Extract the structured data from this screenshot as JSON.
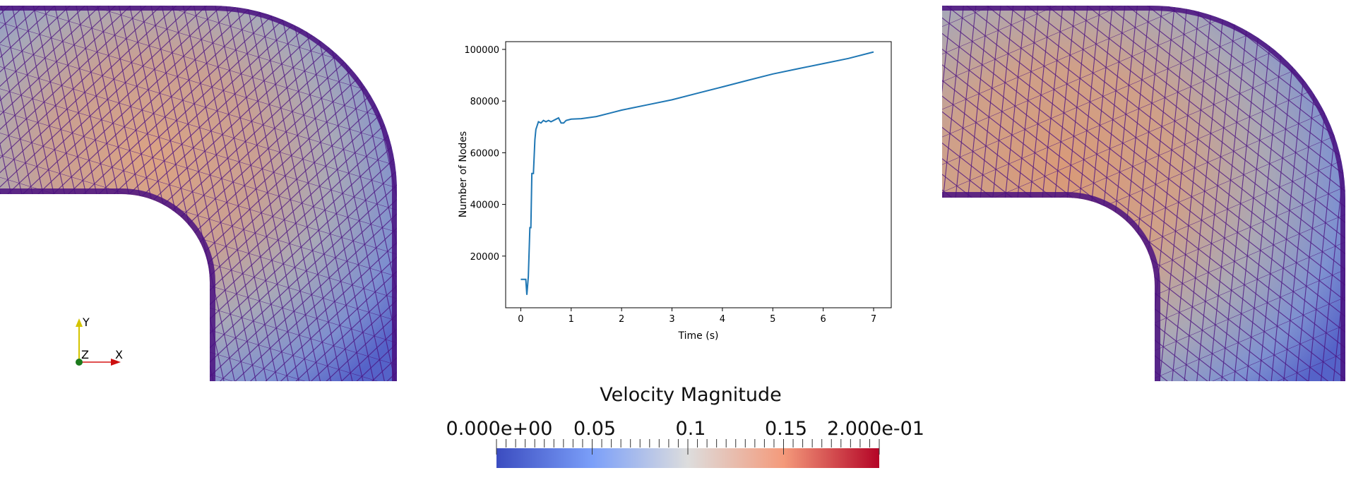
{
  "chart_data": {
    "type": "line",
    "xlabel": "Time (s)",
    "ylabel": "Number of Nodes",
    "xlim": [
      -0.3,
      7.35
    ],
    "ylim": [
      0,
      103000
    ],
    "xticks": [
      0,
      1,
      2,
      3,
      4,
      5,
      6,
      7
    ],
    "yticks": [
      20000,
      40000,
      60000,
      80000,
      100000
    ],
    "grid": false,
    "line_color": "#1f77b4",
    "series": [
      {
        "x": [
          0,
          0.05,
          0.1,
          0.12,
          0.15,
          0.18,
          0.2,
          0.22,
          0.25,
          0.28,
          0.3,
          0.35,
          0.4,
          0.45,
          0.5,
          0.55,
          0.6,
          0.7,
          0.75,
          0.8,
          0.85,
          0.9,
          1.0,
          1.2,
          1.5,
          1.8,
          2.0,
          2.5,
          3.0,
          3.5,
          4.0,
          4.5,
          5.0,
          5.5,
          6.0,
          6.5,
          7.0
        ],
        "y": [
          11000,
          11000,
          11000,
          5000,
          12000,
          31000,
          31000,
          52000,
          52000,
          65000,
          69000,
          72000,
          71500,
          72500,
          72000,
          72500,
          72000,
          73000,
          73500,
          71500,
          71500,
          72500,
          73000,
          73200,
          74000,
          75500,
          76500,
          78500,
          80500,
          83000,
          85500,
          88000,
          90500,
          92500,
          94500,
          96500,
          99000
        ]
      }
    ]
  },
  "colorbar": {
    "title": "Velocity Magnitude",
    "labels": [
      "0.000e+00",
      "0.05",
      "0.1",
      "0.15",
      "2.000e-01"
    ],
    "color_low": "#3b4cc0",
    "color_mid": "#dddddd",
    "color_high": "#b40426"
  },
  "axes_triad": {
    "y": "Y",
    "z": "Z",
    "x": "X"
  }
}
